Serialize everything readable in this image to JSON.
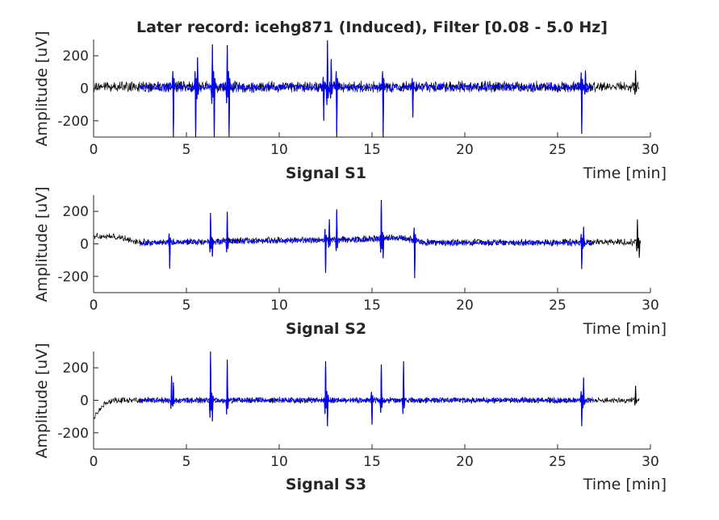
{
  "chart_data": {
    "type": "line",
    "title": "Later record: icehg871 (Induced), Filter [0.08 - 5.0 Hz]",
    "colors": {
      "full_record": "#000000",
      "segment": "#0000ff",
      "axes": "#262626",
      "background": "#ffffff"
    },
    "shared_axes": {
      "xlim": [
        0,
        30
      ],
      "xticks": [
        0,
        5,
        10,
        15,
        20,
        25,
        30
      ],
      "ylim": [
        -300,
        300
      ],
      "yticks": [
        -200,
        0,
        200
      ],
      "xlabel": "Time [min]",
      "ylabel": "Amplitude [uV]",
      "grid": false,
      "box": "bottom-left"
    },
    "subplots": [
      {
        "label": "Signal S1",
        "series": [
          {
            "style": "black-trace",
            "x_range": [
              0,
              29.4
            ],
            "baseline": 10,
            "noise_amplitude": 22,
            "approx_min": -300,
            "approx_max": 295
          },
          {
            "style": "blue-trace",
            "x_range": [
              2.5,
              26.9
            ],
            "baseline": 5,
            "noise_amplitude": 20,
            "approx_min": -300,
            "approx_max": 270
          }
        ],
        "spikes": [
          {
            "x": 4.3,
            "y": -300
          },
          {
            "x": 5.5,
            "y": -300
          },
          {
            "x": 5.6,
            "y": 190
          },
          {
            "x": 6.4,
            "y": 270
          },
          {
            "x": 6.5,
            "y": -300
          },
          {
            "x": 7.2,
            "y": 265
          },
          {
            "x": 7.3,
            "y": -300
          },
          {
            "x": 12.4,
            "y": -200
          },
          {
            "x": 12.6,
            "y": 295
          },
          {
            "x": 12.8,
            "y": 180
          },
          {
            "x": 13.1,
            "y": -300
          },
          {
            "x": 15.6,
            "y": -300
          },
          {
            "x": 17.2,
            "y": -180
          },
          {
            "x": 26.3,
            "y": -280
          },
          {
            "x": 26.5,
            "y": 110
          },
          {
            "x": 29.2,
            "y": 110
          }
        ]
      },
      {
        "label": "Signal S2",
        "series": [
          {
            "style": "black-trace",
            "x_range": [
              0,
              29.4
            ],
            "baseline": 5,
            "noise_amplitude": 14,
            "approx_min": -220,
            "approx_max": 240
          },
          {
            "style": "blue-trace",
            "x_range": [
              2.5,
              26.9
            ],
            "baseline": 0,
            "noise_amplitude": 12,
            "approx_min": -150,
            "approx_max": 150
          }
        ],
        "drift": [
          {
            "x": 0,
            "y": 45
          },
          {
            "x": 1.5,
            "y": 35
          },
          {
            "x": 2.5,
            "y": 5
          },
          {
            "x": 14.5,
            "y": 25
          },
          {
            "x": 16.5,
            "y": 35
          },
          {
            "x": 18,
            "y": 5
          },
          {
            "x": 29.4,
            "y": 5
          }
        ],
        "spikes": [
          {
            "x": 4.1,
            "y": -160
          },
          {
            "x": 6.3,
            "y": 180
          },
          {
            "x": 6.4,
            "y": -90
          },
          {
            "x": 7.2,
            "y": 185
          },
          {
            "x": 12.5,
            "y": -200
          },
          {
            "x": 12.7,
            "y": 130
          },
          {
            "x": 13.1,
            "y": 190
          },
          {
            "x": 15.5,
            "y": 240
          },
          {
            "x": 15.6,
            "y": -120
          },
          {
            "x": 17.3,
            "y": -230
          },
          {
            "x": 26.3,
            "y": -160
          },
          {
            "x": 26.4,
            "y": 100
          },
          {
            "x": 29.3,
            "y": 145
          },
          {
            "x": 29.4,
            "y": -90
          }
        ]
      },
      {
        "label": "Signal S3",
        "series": [
          {
            "style": "black-trace",
            "x_range": [
              0,
              29.4
            ],
            "baseline": 0,
            "noise_amplitude": 12,
            "approx_min": -170,
            "approx_max": 305
          },
          {
            "style": "blue-trace",
            "x_range": [
              2.5,
              26.9
            ],
            "baseline": 0,
            "noise_amplitude": 12,
            "approx_min": -150,
            "approx_max": 160
          }
        ],
        "drift": [
          {
            "x": 0,
            "y": -110
          },
          {
            "x": 0.6,
            "y": -20
          },
          {
            "x": 1.2,
            "y": 0
          },
          {
            "x": 29.4,
            "y": 0
          }
        ],
        "spikes": [
          {
            "x": 4.2,
            "y": 150
          },
          {
            "x": 4.3,
            "y": 110
          },
          {
            "x": 6.3,
            "y": 305
          },
          {
            "x": 6.4,
            "y": -130
          },
          {
            "x": 7.2,
            "y": 250
          },
          {
            "x": 12.5,
            "y": 240
          },
          {
            "x": 12.6,
            "y": -160
          },
          {
            "x": 15.0,
            "y": -150
          },
          {
            "x": 15.5,
            "y": 220
          },
          {
            "x": 16.7,
            "y": 240
          },
          {
            "x": 26.3,
            "y": -160
          },
          {
            "x": 26.4,
            "y": 140
          },
          {
            "x": 29.2,
            "y": 90
          }
        ]
      }
    ]
  }
}
